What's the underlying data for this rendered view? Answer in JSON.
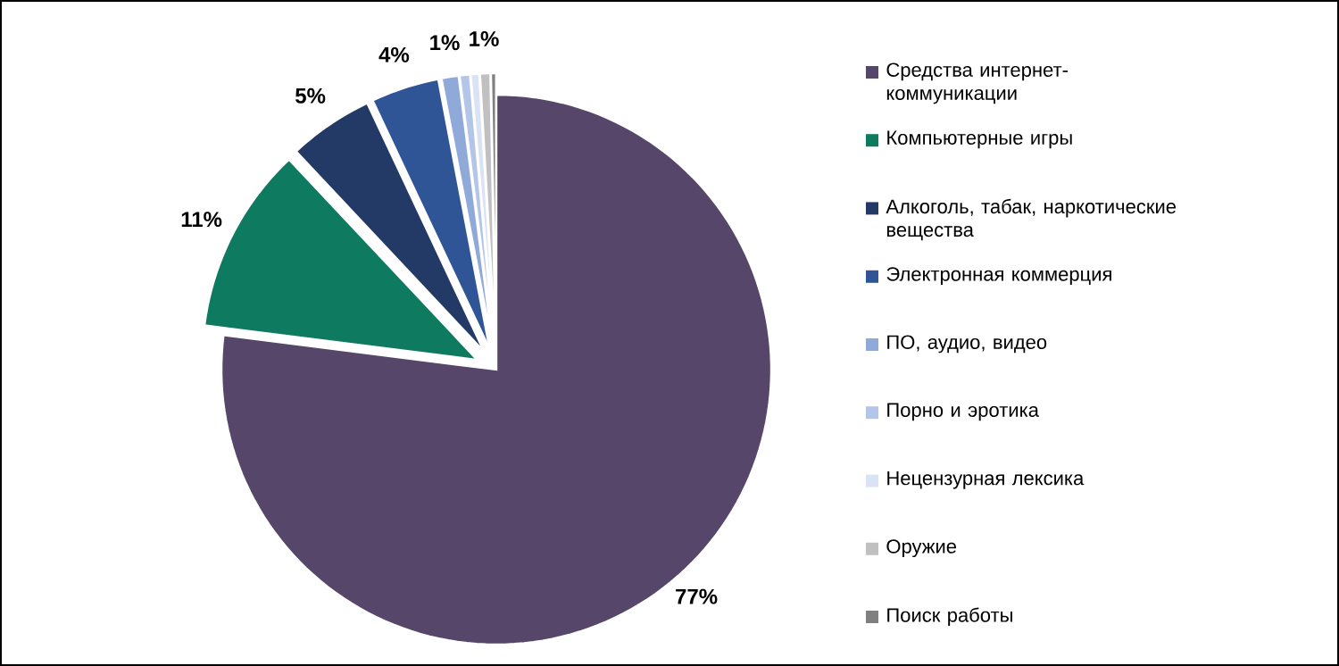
{
  "chart_data": {
    "type": "pie",
    "categories": [
      "Средства интернет-коммуникации",
      "Компьютерные игры",
      "Алкоголь, табак, наркотические вещества",
      "Электронная коммерция",
      "ПО, аудио, видео",
      "Порно и эротика",
      "Нецензурная лексика",
      "Оружие",
      "Поиск работы"
    ],
    "values": [
      77,
      11,
      5,
      4,
      1,
      0.6,
      0.5,
      0.6,
      0.3
    ],
    "colors": [
      "#55466a",
      "#0e7a60",
      "#243a66",
      "#2f5597",
      "#8fa9d8",
      "#b4c6e7",
      "#dae3f3",
      "#c0c0c0",
      "#808080"
    ],
    "value_labels": [
      "77%",
      "11%",
      "5%",
      "4%",
      "1%",
      null,
      null,
      "1%",
      null
    ],
    "legend": "right"
  }
}
